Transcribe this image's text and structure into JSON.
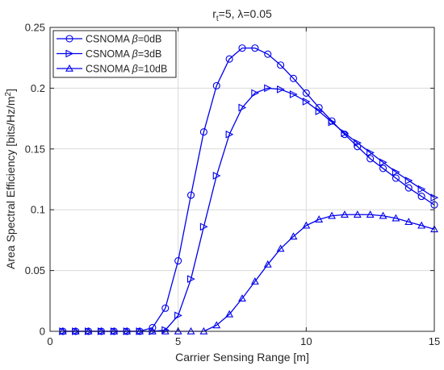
{
  "chart_data": {
    "type": "line",
    "title": "r_t=5, λ=0.05",
    "title_parts": {
      "r": "r",
      "sub": "t",
      "rest": "=5, λ=0.05"
    },
    "xlabel": "Carrier Sensing Range [m]",
    "ylabel": "Area Spectral Efficiency [bits/Hz/m",
    "ylabel_sup": "2",
    "ylabel_close": "]",
    "xlim": [
      0,
      15
    ],
    "ylim": [
      0,
      0.25
    ],
    "xticks": [
      0,
      5,
      10,
      15
    ],
    "xtick_labels": [
      "0",
      "5",
      "10",
      "15"
    ],
    "yticks": [
      0,
      0.05,
      0.1,
      0.15,
      0.2,
      0.25
    ],
    "ytick_labels": [
      "0",
      "0.05",
      "0.1",
      "0.15",
      "0.2",
      "0.25"
    ],
    "grid": true,
    "legend_position": "top-left",
    "line_color": "#0000ee",
    "x": [
      0.5,
      1.0,
      1.5,
      2.0,
      2.5,
      3.0,
      3.5,
      4.0,
      4.5,
      5.0,
      5.5,
      6.0,
      6.5,
      7.0,
      7.5,
      8.0,
      8.5,
      9.0,
      9.5,
      10.0,
      10.5,
      11.0,
      11.5,
      12.0,
      12.5,
      13.0,
      13.5,
      14.0,
      14.5,
      15.0
    ],
    "series": [
      {
        "name": "CSNOMA β=0dB",
        "name_parts": {
          "prefix": "CSNOMA ",
          "beta": "β",
          "suffix": "=0dB"
        },
        "marker": "circle",
        "values": [
          0,
          0,
          0,
          0,
          0,
          0,
          0,
          0.003,
          0.019,
          0.058,
          0.112,
          0.164,
          0.202,
          0.224,
          0.233,
          0.233,
          0.228,
          0.219,
          0.208,
          0.196,
          0.184,
          0.173,
          0.162,
          0.152,
          0.142,
          0.134,
          0.126,
          0.118,
          0.111,
          0.104
        ]
      },
      {
        "name": "CSNOMA β=3dB",
        "name_parts": {
          "prefix": "CSNOMA ",
          "beta": "β",
          "suffix": "=3dB"
        },
        "marker": "triangle-right",
        "values": [
          0,
          0,
          0,
          0,
          0,
          0,
          0,
          0,
          0.001,
          0.013,
          0.043,
          0.086,
          0.128,
          0.162,
          0.184,
          0.196,
          0.2,
          0.199,
          0.195,
          0.189,
          0.181,
          0.172,
          0.163,
          0.155,
          0.147,
          0.139,
          0.131,
          0.124,
          0.117,
          0.11
        ]
      },
      {
        "name": "CSNOMA β=10dB",
        "name_parts": {
          "prefix": "CSNOMA ",
          "beta": "β",
          "suffix": "=10dB"
        },
        "marker": "triangle-up",
        "values": [
          0,
          0,
          0,
          0,
          0,
          0,
          0,
          0,
          0,
          0,
          0,
          0,
          0.005,
          0.014,
          0.027,
          0.041,
          0.055,
          0.068,
          0.078,
          0.087,
          0.092,
          0.095,
          0.096,
          0.096,
          0.096,
          0.095,
          0.093,
          0.09,
          0.087,
          0.084
        ]
      }
    ]
  }
}
